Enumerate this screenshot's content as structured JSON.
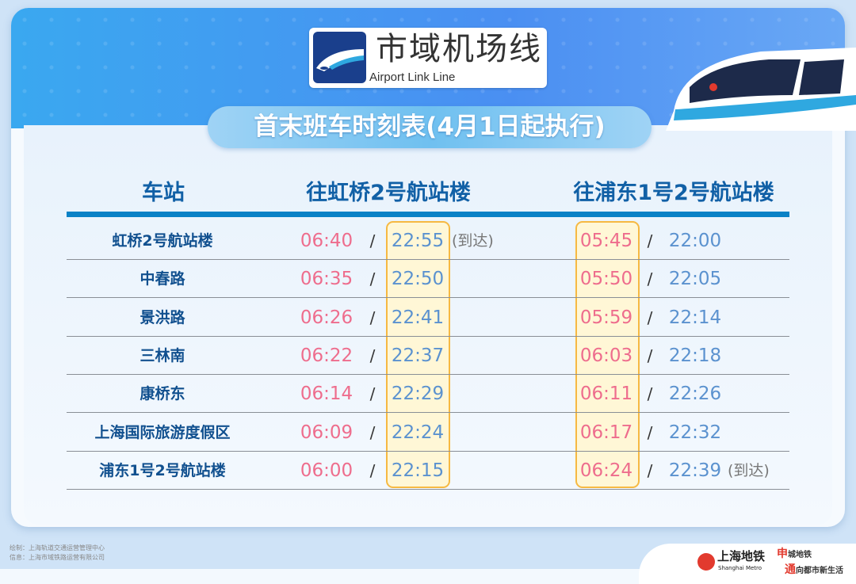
{
  "line": {
    "name_cn": "市域机场线",
    "name_en": "Airport Link Line"
  },
  "title": "首末班车时刻表(4月1日起执行)",
  "columns": {
    "station": "车站",
    "to_hongqiao": "往虹桥2号航站楼",
    "to_pudong": "往浦东1号2号航站楼"
  },
  "arrival_note": "(到达)",
  "separator": "/",
  "rows": [
    {
      "station": "虹桥2号航站楼",
      "hq_first": "06:40",
      "hq_last": "22:55",
      "hq_note": "(到达)",
      "pd_first": "05:45",
      "pd_last": "22:00",
      "pd_note": ""
    },
    {
      "station": "中春路",
      "hq_first": "06:35",
      "hq_last": "22:50",
      "hq_note": "",
      "pd_first": "05:50",
      "pd_last": "22:05",
      "pd_note": ""
    },
    {
      "station": "景洪路",
      "hq_first": "06:26",
      "hq_last": "22:41",
      "hq_note": "",
      "pd_first": "05:59",
      "pd_last": "22:14",
      "pd_note": ""
    },
    {
      "station": "三林南",
      "hq_first": "06:22",
      "hq_last": "22:37",
      "hq_note": "",
      "pd_first": "06:03",
      "pd_last": "22:18",
      "pd_note": ""
    },
    {
      "station": "康桥东",
      "hq_first": "06:14",
      "hq_last": "22:29",
      "hq_note": "",
      "pd_first": "06:11",
      "pd_last": "22:26",
      "pd_note": ""
    },
    {
      "station": "上海国际旅游度假区",
      "hq_first": "06:09",
      "hq_last": "22:24",
      "hq_note": "",
      "pd_first": "06:17",
      "pd_last": "22:32",
      "pd_note": ""
    },
    {
      "station": "浦东1号2号航站楼",
      "hq_first": "06:00",
      "hq_last": "22:15",
      "hq_note": "",
      "pd_first": "06:24",
      "pd_last": "22:39",
      "pd_note": "(到达)"
    }
  ],
  "footer": {
    "drawn_by": "绘制：上海轨道交通运营管理中心",
    "info": "信息：上海市域铁路运营有限公司"
  },
  "brand": {
    "name_cn": "上海地铁",
    "name_en": "Shanghai Metro",
    "slogan_1_red": "申",
    "slogan_1": "城地铁",
    "slogan_2_red": "通",
    "slogan_2": "向都市新生活"
  },
  "colors": {
    "first_train": "#ee6d8d",
    "last_train": "#5b92cf",
    "station": "#11508f",
    "highlight_border": "#f6b942",
    "header_blue": "#4a8ff2"
  }
}
